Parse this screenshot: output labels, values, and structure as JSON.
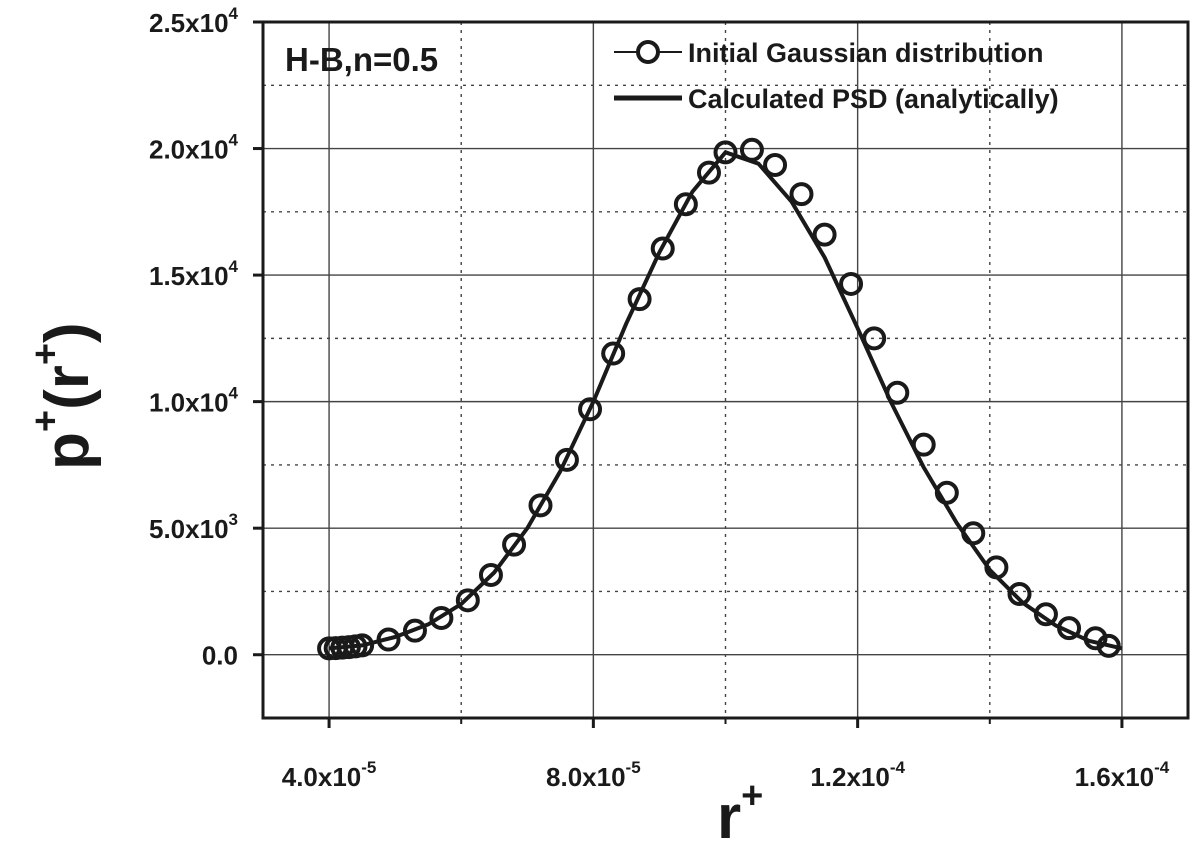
{
  "chart_data": {
    "type": "line",
    "annotation": "H-B,n=0.5",
    "xlabel": {
      "base": "r",
      "sup": "+"
    },
    "ylabel": {
      "base": "p",
      "sup1": "+",
      "mid": "(r",
      "sup2": "+",
      "end": ")"
    },
    "xlim": [
      3e-05,
      0.00017
    ],
    "ylim": [
      -2500,
      25000
    ],
    "grid": true,
    "legend": {
      "position": "top-right"
    },
    "x_ticks": [
      {
        "value": 4e-05,
        "mant": "4.0x10",
        "exp": "-5"
      },
      {
        "value": 8e-05,
        "mant": "8.0x10",
        "exp": "-5"
      },
      {
        "value": 0.00012,
        "mant": "1.2x10",
        "exp": "-4"
      },
      {
        "value": 0.00016,
        "mant": "1.6x10",
        "exp": "-4"
      }
    ],
    "y_ticks": [
      {
        "value": 0,
        "mant": "0.0",
        "exp": ""
      },
      {
        "value": 5000,
        "mant": "5.0x10",
        "exp": "3"
      },
      {
        "value": 10000,
        "mant": "1.0x10",
        "exp": "4"
      },
      {
        "value": 15000,
        "mant": "1.5x10",
        "exp": "4"
      },
      {
        "value": 20000,
        "mant": "2.0x10",
        "exp": "4"
      },
      {
        "value": 25000,
        "mant": "2.5x10",
        "exp": "4"
      }
    ],
    "series": [
      {
        "name": "Initial Gaussian distribution",
        "style": "markers",
        "marker": "open-circle",
        "x": [
          4e-05,
          4.1e-05,
          4.2e-05,
          4.3e-05,
          4.4e-05,
          4.5e-05,
          4.9e-05,
          5.3e-05,
          5.7e-05,
          6.1e-05,
          6.45e-05,
          6.8e-05,
          7.2e-05,
          7.6e-05,
          7.95e-05,
          8.3e-05,
          8.7e-05,
          9.05e-05,
          9.4e-05,
          9.75e-05,
          0.0001,
          0.000104,
          0.0001075,
          0.0001115,
          0.000115,
          0.000119,
          0.0001225,
          0.000126,
          0.00013,
          0.0001335,
          0.0001375,
          0.000141,
          0.0001445,
          0.0001485,
          0.000152,
          0.000156,
          0.000158
        ],
        "y": [
          250,
          260,
          280,
          300,
          330,
          370,
          600,
          950,
          1450,
          2150,
          3150,
          4350,
          5900,
          7700,
          9700,
          11900,
          14050,
          16050,
          17800,
          19050,
          19850,
          19950,
          19350,
          18200,
          16600,
          14650,
          12500,
          10350,
          8300,
          6400,
          4800,
          3450,
          2400,
          1600,
          1050,
          650,
          350
        ]
      },
      {
        "name": "Calculated PSD (analytically)",
        "style": "line",
        "x": [
          4e-05,
          4.5e-05,
          5e-05,
          5.5e-05,
          6e-05,
          6.5e-05,
          7e-05,
          7.5e-05,
          8e-05,
          8.5e-05,
          9e-05,
          9.5e-05,
          0.0001,
          0.000105,
          0.00011,
          0.000115,
          0.00012,
          0.000125,
          0.00013,
          0.000135,
          0.00014,
          0.000145,
          0.00015,
          0.000155,
          0.00016
        ],
        "y": [
          250,
          370,
          700,
          1200,
          2000,
          3250,
          5000,
          7250,
          10000,
          13100,
          15900,
          18300,
          19850,
          19400,
          17900,
          15700,
          12900,
          10000,
          7400,
          5200,
          3350,
          2050,
          1150,
          550,
          250
        ]
      }
    ]
  }
}
